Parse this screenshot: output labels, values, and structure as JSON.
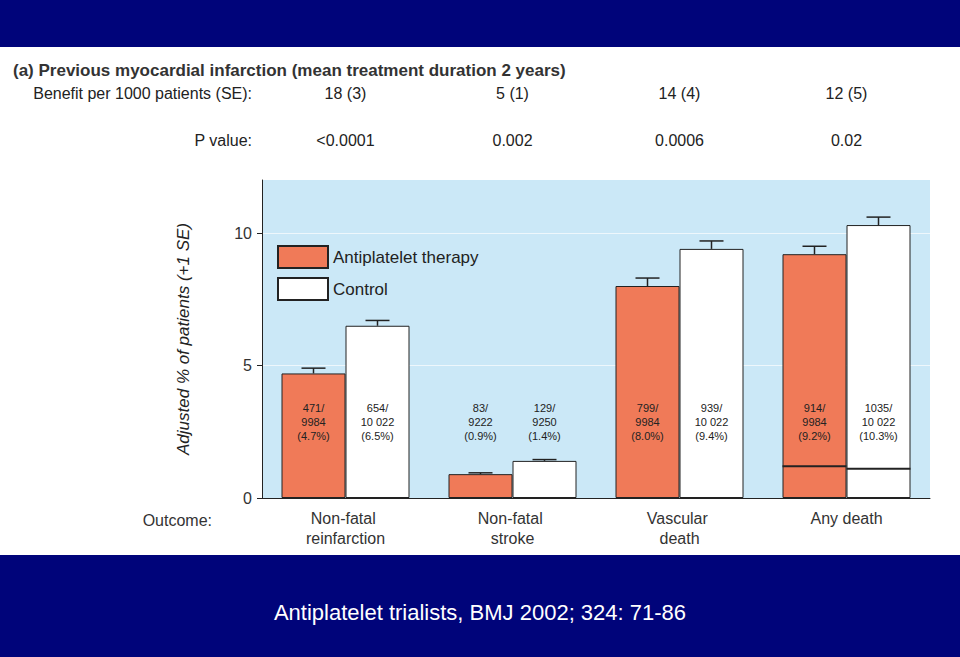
{
  "chart_data": {
    "type": "bar",
    "title": "(a) Previous myocardial infarction (mean treatment duration 2 years)",
    "caption": "Antiplatelet trialists, BMJ 2002; 324: 71-86",
    "categories": [
      "Non-fatal reinfarction",
      "Non-fatal stroke",
      "Vascular death",
      "Any death"
    ],
    "x_label": "Outcome:",
    "y_label": "Adjusted % of patients (+1 SE)",
    "rows": [
      {
        "label": "Benefit per 1000 patients (SE):",
        "values": [
          "18 (3)",
          "5 (1)",
          "14 (4)",
          "12 (5)"
        ]
      },
      {
        "label": "P value:",
        "values": [
          "<0.0001",
          "0.002",
          "0.0006",
          "0.02"
        ]
      }
    ],
    "series": [
      {
        "name": "Antiplatelet therapy",
        "color": "#f07a58",
        "values": [
          4.7,
          0.9,
          8.0,
          9.2
        ],
        "value_labels": [
          "471/\n9984\n(4.7%)",
          "83/\n9222\n(0.9%)",
          "799/\n9984\n(8.0%)",
          "914/\n9984\n(9.2%)"
        ],
        "errors": [
          0.2,
          0.05,
          0.3,
          0.3
        ],
        "inner_line": [
          null,
          null,
          null,
          1.2
        ]
      },
      {
        "name": "Control",
        "color": "#ffffff",
        "values": [
          6.5,
          1.4,
          9.4,
          10.3
        ],
        "value_labels": [
          "654/\n10 022\n(6.5%)",
          "129/\n9250\n(1.4%)",
          "939/\n10 022\n(9.4%)",
          "1035/\n10 022\n(10.3%)"
        ],
        "errors": [
          0.2,
          0.05,
          0.3,
          0.3
        ],
        "inner_line": [
          null,
          null,
          null,
          1.1
        ]
      }
    ],
    "ylim": [
      0,
      12
    ],
    "yticks": [
      0,
      5,
      10
    ],
    "grid": true,
    "legend": "upper left",
    "data_labels": true
  }
}
